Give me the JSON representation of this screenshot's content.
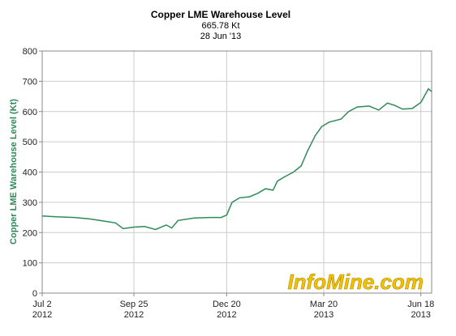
{
  "chart_data": {
    "type": "line",
    "title": "Copper LME Warehouse Level",
    "subtitle": [
      "665.78 Kt",
      "28 Jun '13"
    ],
    "y_label": "Copper LME Warehouse Level (Kt)",
    "watermark": "InfoMine.com",
    "color": "#2e8b57",
    "x": [
      "2012-07-02",
      "2012-07-15",
      "2012-08-01",
      "2012-08-15",
      "2012-08-28",
      "2012-09-08",
      "2012-09-15",
      "2012-09-25",
      "2012-10-05",
      "2012-10-15",
      "2012-10-25",
      "2012-10-30",
      "2012-11-05",
      "2012-11-20",
      "2012-12-05",
      "2012-12-15",
      "2012-12-20",
      "2012-12-25",
      "2013-01-01",
      "2013-01-10",
      "2013-01-18",
      "2013-01-25",
      "2013-02-01",
      "2013-02-05",
      "2013-02-12",
      "2013-02-20",
      "2013-02-27",
      "2013-03-05",
      "2013-03-12",
      "2013-03-18",
      "2013-03-25",
      "2013-04-05",
      "2013-04-12",
      "2013-04-20",
      "2013-05-01",
      "2013-05-10",
      "2013-05-18",
      "2013-05-25",
      "2013-06-01",
      "2013-06-10",
      "2013-06-18",
      "2013-06-25",
      "2013-06-28"
    ],
    "values": [
      255,
      252,
      250,
      245,
      238,
      232,
      213,
      218,
      220,
      210,
      225,
      215,
      240,
      248,
      250,
      250,
      258,
      300,
      315,
      318,
      330,
      345,
      340,
      370,
      385,
      400,
      420,
      470,
      520,
      550,
      565,
      575,
      600,
      615,
      618,
      605,
      628,
      620,
      608,
      610,
      630,
      675,
      666
    ],
    "xlim": [
      "2012-07-02",
      "2013-06-28"
    ],
    "xticks": [
      {
        "value": "2012-07-02",
        "label": [
          "Jul 2",
          "2012"
        ]
      },
      {
        "value": "2012-09-25",
        "label": [
          "Sep 25",
          "2012"
        ]
      },
      {
        "value": "2012-12-20",
        "label": [
          "Dec 20",
          "2012"
        ]
      },
      {
        "value": "2013-03-20",
        "label": [
          "Mar 20",
          "2013"
        ]
      },
      {
        "value": "2013-06-18",
        "label": [
          "Jun 18",
          "2013"
        ]
      }
    ],
    "ylim": [
      0,
      800
    ],
    "yticks": [
      0,
      100,
      200,
      300,
      400,
      500,
      600,
      700,
      800
    ],
    "grid": true
  }
}
